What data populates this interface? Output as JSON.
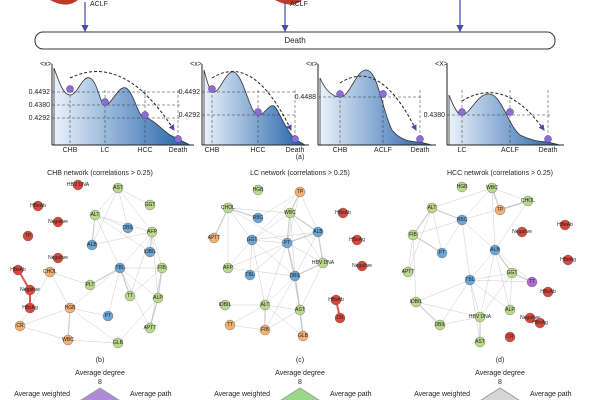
{
  "top": {
    "labels": [
      "ACLF",
      "ACLF"
    ],
    "death": "Death"
  },
  "landscapes": [
    {
      "ylabel": "<x>",
      "yticks": [
        "0.4492",
        "0.4380",
        "0.4292"
      ],
      "states": [
        "CHB",
        "LC",
        "HCC",
        "Death"
      ]
    },
    {
      "ylabel": "<x>",
      "yticks": [
        "0.4492",
        "0.4292"
      ],
      "states": [
        "CHB",
        "HCC",
        "Death"
      ]
    },
    {
      "ylabel": "<x>",
      "yticks": [
        "0.4488"
      ],
      "states": [
        "CHB",
        "ACLF",
        "Death"
      ]
    },
    {
      "ylabel": "<X>",
      "yticks": [
        "0.4380"
      ],
      "states": [
        "LC",
        "ACLF",
        "Death"
      ]
    }
  ],
  "landscape_caption": "(a)",
  "networks": [
    {
      "title": "CHB network (correlations > 0.25)",
      "caption": "(b)",
      "nodes": [
        {
          "label": "HBV DNA",
          "color": "#d9473b"
        },
        {
          "label": "AST",
          "color": "#b9d88a"
        },
        {
          "label": "HBeAb",
          "color": "#d9473b"
        },
        {
          "label": "GGT",
          "color": "#b9d88a"
        },
        {
          "label": "ALT",
          "color": "#b9d88a"
        },
        {
          "label": "Negative",
          "color": "#d9473b"
        },
        {
          "label": "DBIL",
          "color": "#6aa6d8"
        },
        {
          "label": "TP",
          "color": "#d9473b"
        },
        {
          "label": "AFP",
          "color": "#b9d88a"
        },
        {
          "label": "ALB",
          "color": "#6aa6d8"
        },
        {
          "label": "Negative",
          "color": "#d9473b"
        },
        {
          "label": "CHOL",
          "color": "#f0b070"
        },
        {
          "label": "IDBIL",
          "color": "#6aa6d8"
        },
        {
          "label": "TBL",
          "color": "#6aa6d8"
        },
        {
          "label": "HBsAb",
          "color": "#d9473b"
        },
        {
          "label": "PLT",
          "color": "#b9d88a"
        },
        {
          "label": "FIB",
          "color": "#b9d88a"
        },
        {
          "label": "Negative",
          "color": "#d9473b"
        },
        {
          "label": "TT",
          "color": "#b9d88a"
        },
        {
          "label": "HBsAg",
          "color": "#d9473b"
        },
        {
          "label": "HGB",
          "color": "#f0b070"
        },
        {
          "label": "PT",
          "color": "#6aa6d8"
        },
        {
          "label": "ALP",
          "color": "#b9d88a"
        },
        {
          "label": "CR",
          "color": "#f0b070"
        },
        {
          "label": "APTT",
          "color": "#b9d88a"
        },
        {
          "label": "WBC",
          "color": "#f0b070"
        },
        {
          "label": "GLB",
          "color": "#b9d88a"
        }
      ]
    },
    {
      "title": "LC network (correlations > 0.25)",
      "caption": "(c)",
      "nodes": [
        {
          "label": "HGB",
          "color": "#b9d88a"
        },
        {
          "label": "CHOL",
          "color": "#b9d88a"
        },
        {
          "label": "TP",
          "color": "#f0b070"
        },
        {
          "label": "RBC",
          "color": "#6aa6d8"
        },
        {
          "label": "WBC",
          "color": "#b9d88a"
        },
        {
          "label": "ALB",
          "color": "#6aa6d8"
        },
        {
          "label": "APTT",
          "color": "#f0b070"
        },
        {
          "label": "GGT",
          "color": "#6aa6d8"
        },
        {
          "label": "PT",
          "color": "#6aa6d8"
        },
        {
          "label": "HBeAb",
          "color": "#d9473b"
        },
        {
          "label": "HBeAg",
          "color": "#d9473b"
        },
        {
          "label": "Negative",
          "color": "#d9473b"
        },
        {
          "label": "TBL",
          "color": "#6aa6d8"
        },
        {
          "label": "DBIL",
          "color": "#6aa6d8"
        },
        {
          "label": "HBV DNA",
          "color": "#b9d88a"
        },
        {
          "label": "AFP",
          "color": "#b9d88a"
        },
        {
          "label": "ALT",
          "color": "#b9d88a"
        },
        {
          "label": "HBsAb",
          "color": "#d9473b"
        },
        {
          "label": "IDBIL",
          "color": "#b9d88a"
        },
        {
          "label": "AST",
          "color": "#b9d88a"
        },
        {
          "label": "TT",
          "color": "#f0b070"
        },
        {
          "label": "FIB",
          "color": "#f0b070"
        },
        {
          "label": "GLB",
          "color": "#f0b070"
        },
        {
          "label": "CR",
          "color": "#d9473b"
        }
      ]
    },
    {
      "title": "HCC netwrok (correlations > 0.25)",
      "caption": "(d)",
      "nodes": [
        {
          "label": "HGB",
          "color": "#b9d88a"
        },
        {
          "label": "WBC",
          "color": "#b9d88a"
        },
        {
          "label": "CHOL",
          "color": "#b9d88a"
        },
        {
          "label": "TP",
          "color": "#f0b070"
        },
        {
          "label": "ALT",
          "color": "#b9d88a"
        },
        {
          "label": "RBC",
          "color": "#6aa6d8"
        },
        {
          "label": "HBeAb",
          "color": "#d9473b"
        },
        {
          "label": "Negative",
          "color": "#d9473b"
        },
        {
          "label": "FIB",
          "color": "#b9d88a"
        },
        {
          "label": "PT",
          "color": "#6aa6d8"
        },
        {
          "label": "ALB",
          "color": "#6aa6d8"
        },
        {
          "label": "HBeAg",
          "color": "#d9473b"
        },
        {
          "label": "APTT",
          "color": "#b9d88a"
        },
        {
          "label": "TBL",
          "color": "#6aa6d8"
        },
        {
          "label": "GGT",
          "color": "#b9d88a"
        },
        {
          "label": "TT",
          "color": "#b06ad0"
        },
        {
          "label": "HBsAb",
          "color": "#d9473b"
        },
        {
          "label": "IDBIL",
          "color": "#b9d88a"
        },
        {
          "label": "ALP",
          "color": "#b9d88a"
        },
        {
          "label": "HBV DNA",
          "color": "#b9d88a"
        },
        {
          "label": "Negative",
          "color": "#d9473b"
        },
        {
          "label": "DBIL",
          "color": "#b9d88a"
        },
        {
          "label": "HBsAg",
          "color": "#d9473b"
        },
        {
          "label": "AST",
          "color": "#b9d88a"
        },
        {
          "label": "CR",
          "color": "#d9473b"
        }
      ]
    }
  ],
  "radars": [
    {
      "top": "Average degree",
      "max": "8",
      "left": "Average weighted",
      "right": "Average path",
      "color": "#9b6fd0"
    },
    {
      "top": "Average degree",
      "max": "8",
      "left": "Average weighted",
      "right": "Average path",
      "color": "#7fcf6a"
    },
    {
      "top": "Average degree",
      "max": "8",
      "left": "Average weighted",
      "right": "Average path",
      "color": "#cccccc"
    }
  ]
}
